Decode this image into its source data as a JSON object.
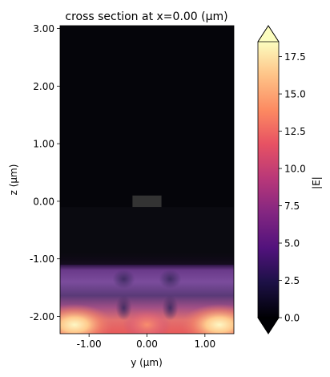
{
  "chart_data": {
    "type": "heatmap",
    "title": "cross section at x=0.00 (μm)",
    "xlabel": "y (μm)",
    "ylabel": "z (μm)",
    "xlim": [
      -1.5,
      1.5
    ],
    "ylim": [
      -2.3,
      3.05
    ],
    "xticks": [
      -1.0,
      0.0,
      1.0
    ],
    "xtick_labels": [
      "-1.00",
      "0.00",
      "1.00"
    ],
    "yticks": [
      3.0,
      2.0,
      1.0,
      0.0,
      -1.0,
      -2.0
    ],
    "ytick_labels": [
      "3.00",
      "2.00",
      "1.00",
      "0.00",
      "-1.00",
      "-2.00"
    ],
    "colorbar": {
      "label": "|E|",
      "cmap": "magma",
      "range": [
        0,
        18.5
      ],
      "ticks": [
        0.0,
        2.5,
        5.0,
        7.5,
        10.0,
        12.5,
        15.0,
        17.5
      ],
      "tick_labels": [
        "0.0",
        "2.5",
        "5.0",
        "7.5",
        "10.0",
        "12.5",
        "15.0",
        "17.5"
      ],
      "extend": "both"
    },
    "structure": {
      "name": "waveguide core",
      "y_range": [
        -0.25,
        0.25
      ],
      "z_range": [
        -0.1,
        0.1
      ],
      "color": "#333333"
    },
    "field_region": {
      "z_top": -1.1,
      "bottom_band_z": [
        -2.3,
        -1.6
      ],
      "lobe_y_centers": [
        -1.25,
        0.0,
        1.25
      ],
      "peak_value": 18.5
    },
    "grid": false
  }
}
